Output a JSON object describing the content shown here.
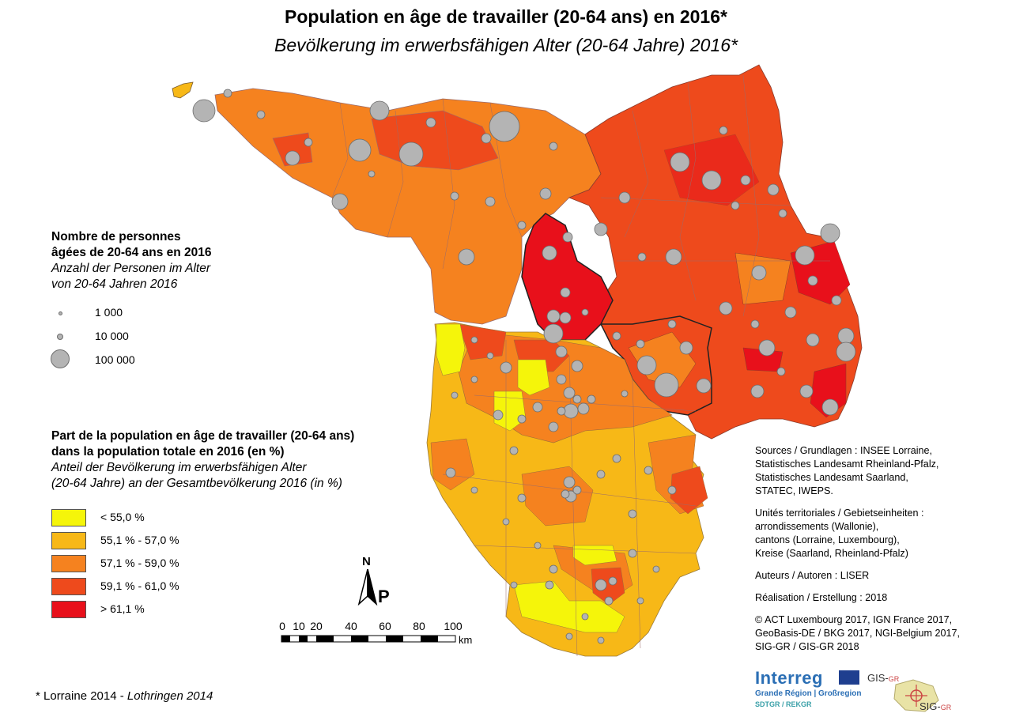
{
  "title": "Population en âge de travailler (20-64 ans) en 2016*",
  "subtitle": "Bevölkerung im erwerbsfähigen Alter (20-64 Jahre) 2016*",
  "size_legend": {
    "title_fr_1": "Nombre de personnes",
    "title_fr_2": "âgées de 20-64 ans en 2016",
    "title_de_1": "Anzahl der Personen im Alter",
    "title_de_2": "von 20-64 Jahren 2016",
    "items": [
      {
        "label": "1 000",
        "value": 1000
      },
      {
        "label": "10 000",
        "value": 10000
      },
      {
        "label": "100 000",
        "value": 100000
      }
    ],
    "circle_color": "#b4b4b4"
  },
  "class_legend": {
    "title_fr_1": "Part de la population en âge de travailler (20-64 ans)",
    "title_fr_2": "dans la population totale en 2016 (en %)",
    "title_de_1": "Anteil der Bevölkerung im erwerbsfähigen Alter",
    "title_de_2": "(20-64 Jahre) an der Gesamtbevölkerung 2016 (in %)",
    "items": [
      {
        "label": "< 55,0 %",
        "color": "#f5f50a"
      },
      {
        "label": "55,1 % - 57,0 %",
        "color": "#f7b817"
      },
      {
        "label": "57,1 % - 59,0 %",
        "color": "#f5821f"
      },
      {
        "label": "59,1 % - 61,0 %",
        "color": "#ee4a1c"
      },
      {
        "label": "> 61,1 %",
        "color": "#e8101b"
      }
    ]
  },
  "north_arrow": {
    "n": "N",
    "p": "P"
  },
  "scale": {
    "ticks": [
      "0",
      "10",
      "20",
      "40",
      "60",
      "80",
      "100"
    ],
    "unit": "km"
  },
  "sources": {
    "line1": "Sources / Grundlagen : INSEE Lorraine,",
    "line2": "Statistisches Landesamt Rheinland-Pfalz,",
    "line3": "Statistisches Landesamt Saarland,",
    "line4": "STATEC, IWEPS.",
    "units1": "Unités territoriales / Gebietseinheiten :",
    "units2": "arrondissements (Wallonie),",
    "units3": "cantons (Lorraine, Luxembourg),",
    "units4": "Kreise (Saarland, Rheinland-Pfalz)",
    "authors": "Auteurs / Autoren : LISER",
    "made": "Réalisation / Erstellung : 2018",
    "copy1": "© ACT Luxembourg 2017, IGN France 2017,",
    "copy2": "GeoBasis-DE / BKG 2017, NGI-Belgium 2017,",
    "copy3": "SIG-GR / GIS-GR 2018"
  },
  "footnote": {
    "fr": "* Lorraine 2014 - ",
    "de": "Lothringen 2014"
  },
  "logos": {
    "interreg": "Interreg",
    "interreg_line1": "Grande Région | Großregion",
    "interreg_line2": "SDTGR / REKGR",
    "gis1": "GIS-",
    "gis1_suffix": "GR",
    "gis2": "SIG-",
    "gis2_suffix": "GR"
  }
}
